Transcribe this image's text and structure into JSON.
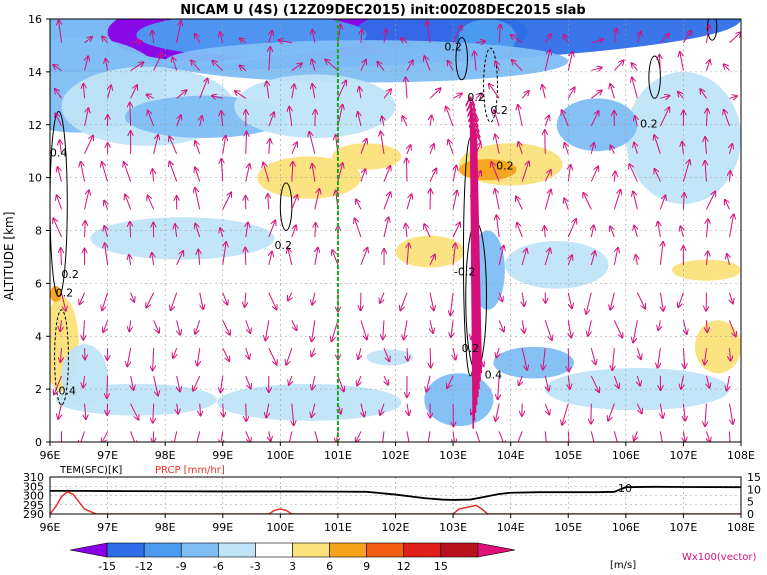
{
  "chart_data": [
    {
      "type": "heatmap",
      "title": "NICAM U (4S) (12Z09DEC2015) init:00Z08DEC2015 slab",
      "variable": "U",
      "units": "m/s",
      "ylabel": "ALTITUDE [km]",
      "x_ticks": [
        "96E",
        "97E",
        "98E",
        "99E",
        "100E",
        "101E",
        "102E",
        "103E",
        "104E",
        "105E",
        "106E",
        "107E",
        "108E"
      ],
      "y_ticks": [
        "0",
        "2",
        "4",
        "6",
        "8",
        "10",
        "12",
        "14",
        "16"
      ],
      "xlim": [
        96,
        108
      ],
      "ylim": [
        0,
        16
      ],
      "grid": true,
      "colorbar": {
        "labels": [
          "-15",
          "-12",
          "-9",
          "-6",
          "-3",
          "3",
          "6",
          "9",
          "12",
          "15"
        ],
        "unit_label": "[m/s]",
        "colors": [
          "#8a00e6",
          "#2f6ee8",
          "#4b9cf0",
          "#7fbef5",
          "#bfe4f8",
          "#ffffff",
          "#fbe27a",
          "#f7a21b",
          "#f25f12",
          "#e0201a",
          "#b8101c",
          "#e0107a"
        ]
      },
      "contour_labels": [
        "0.2",
        "0.2",
        "0.2",
        "0.2",
        "0.2",
        "0.2",
        "0.4",
        "-0.2",
        "0.2",
        "0.4",
        "0.2",
        "0.2",
        "0.4"
      ],
      "vector_legend": "Wx100(vector)",
      "vector_color": "#d6107a",
      "marker_longitude": 101.0
    },
    {
      "type": "line",
      "xlim": [
        96,
        108
      ],
      "series": [
        {
          "name": "TEM(SFC)[K]",
          "color": "#000000",
          "x": [
            96,
            96.5,
            97,
            98,
            99,
            100,
            101,
            101.5,
            102,
            102.5,
            102.8,
            103,
            103.3,
            103.5,
            103.8,
            104,
            104.5,
            105,
            105.5,
            105.8,
            106,
            106.5,
            107,
            108
          ],
          "values": [
            302.5,
            302.5,
            302.4,
            302.3,
            302.2,
            302.2,
            302.1,
            302.0,
            300.5,
            298.6,
            297.8,
            297.6,
            297.8,
            299.0,
            300.8,
            301.5,
            301.8,
            301.8,
            301.8,
            302.0,
            304.5,
            304.7,
            304.6,
            304.5
          ],
          "axis_ticks": [
            "310",
            "305",
            "300",
            "295",
            "290"
          ]
        },
        {
          "name": "PRCP [mm/hr]",
          "color": "#e8302a",
          "x": [
            96,
            96.1,
            96.2,
            96.3,
            96.4,
            96.5,
            96.6,
            96.8,
            99.8,
            99.9,
            100.0,
            100.1,
            100.2,
            103.0,
            103.1,
            103.3,
            103.4,
            103.5,
            103.6,
            108
          ],
          "values": [
            0,
            3,
            7,
            9,
            8,
            5,
            2,
            0,
            0,
            1.5,
            2,
            1.5,
            0,
            0,
            2,
            3,
            3.5,
            2,
            0,
            0
          ],
          "axis_ticks": [
            "15",
            "10",
            "5",
            "0"
          ]
        }
      ],
      "annotation": "10"
    }
  ]
}
